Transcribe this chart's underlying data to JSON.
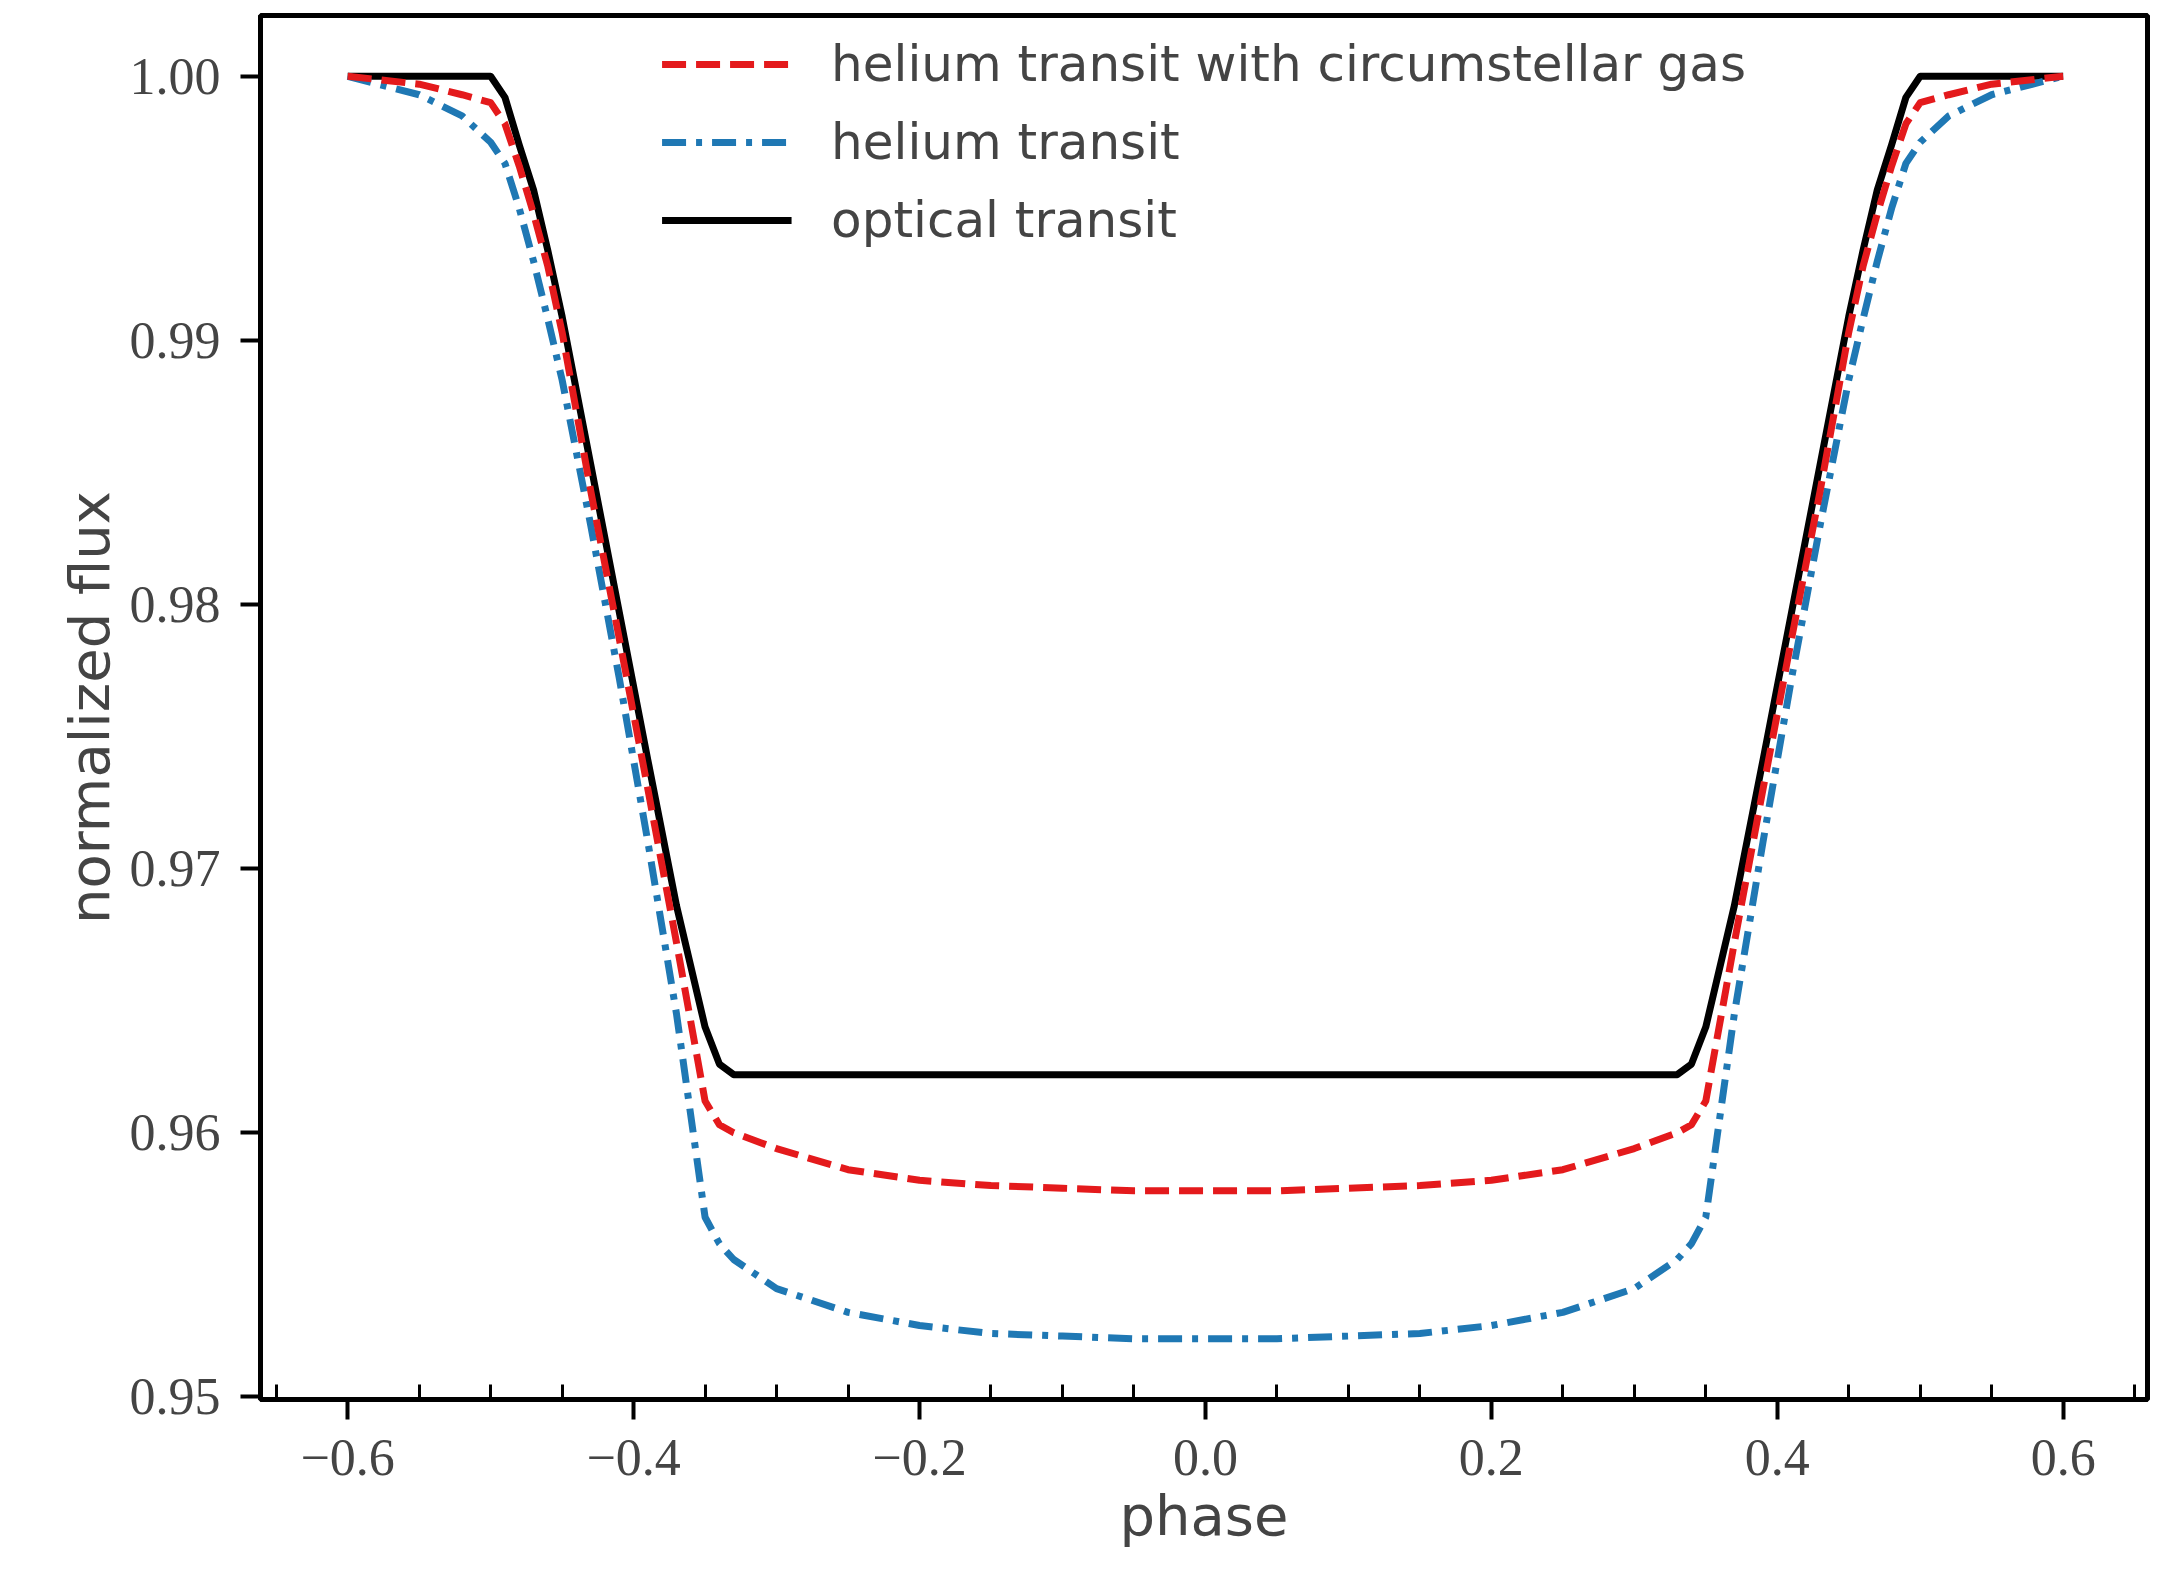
{
  "chart_data": {
    "type": "line",
    "xlabel": "phase",
    "ylabel": "normalized flux",
    "x": [
      -0.6,
      -0.55,
      -0.52,
      -0.5,
      -0.49,
      -0.48,
      -0.47,
      -0.46,
      -0.45,
      -0.43,
      -0.41,
      -0.39,
      -0.37,
      -0.35,
      -0.34,
      -0.33,
      -0.3,
      -0.25,
      -0.2,
      -0.15,
      -0.1,
      -0.05,
      0,
      0.05,
      0.1,
      0.15,
      0.2,
      0.25,
      0.3,
      0.33,
      0.34,
      0.35,
      0.37,
      0.39,
      0.41,
      0.43,
      0.45,
      0.46,
      0.47,
      0.48,
      0.49,
      0.5,
      0.52,
      0.55,
      0.6
    ],
    "series": [
      {
        "name": "helium transit with circumstellar gas",
        "color": "#e41a1c",
        "line_style": "dashed",
        "values": [
          1,
          0.9997,
          0.9993,
          0.999,
          0.9982,
          0.9966,
          0.9948,
          0.9928,
          0.9903,
          0.9843,
          0.9787,
          0.973,
          0.9672,
          0.9612,
          0.9603,
          0.96,
          0.9594,
          0.9586,
          0.9582,
          0.958,
          0.9579,
          0.9578,
          0.9578,
          0.9578,
          0.9579,
          0.958,
          0.9582,
          0.9586,
          0.9594,
          0.96,
          0.9603,
          0.9612,
          0.9672,
          0.973,
          0.9787,
          0.9843,
          0.9903,
          0.9928,
          0.9948,
          0.9966,
          0.9982,
          0.999,
          0.9993,
          0.9997,
          1
        ]
      },
      {
        "name": "helium transit",
        "color": "#1f78b4",
        "line_style": "dashdot",
        "values": [
          1,
          0.9993,
          0.9985,
          0.9975,
          0.9967,
          0.995,
          0.993,
          0.9908,
          0.9885,
          0.983,
          0.9772,
          0.971,
          0.9645,
          0.9568,
          0.9558,
          0.9552,
          0.9541,
          0.9532,
          0.9527,
          0.9524,
          0.9523,
          0.9522,
          0.9522,
          0.9522,
          0.9523,
          0.9524,
          0.9527,
          0.9532,
          0.9541,
          0.9552,
          0.9558,
          0.9568,
          0.9645,
          0.971,
          0.9772,
          0.983,
          0.9885,
          0.9908,
          0.993,
          0.995,
          0.9967,
          0.9975,
          0.9985,
          0.9993,
          1
        ]
      },
      {
        "name": "optical transit",
        "color": "#000000",
        "line_style": "solid",
        "values": [
          1,
          1,
          1,
          1,
          0.9992,
          0.9974,
          0.9957,
          0.9934,
          0.9909,
          0.9853,
          0.9797,
          0.9741,
          0.9686,
          0.964,
          0.9626,
          0.9622,
          0.9622,
          0.9622,
          0.9622,
          0.9622,
          0.9622,
          0.9622,
          0.9622,
          0.9622,
          0.9622,
          0.9622,
          0.9622,
          0.9622,
          0.9622,
          0.9622,
          0.9626,
          0.964,
          0.9686,
          0.9741,
          0.9797,
          0.9853,
          0.9909,
          0.9934,
          0.9957,
          0.9974,
          0.9992,
          1,
          1,
          1,
          1
        ]
      }
    ],
    "xlim": [
      -0.661,
      0.659
    ],
    "ylim": [
      0.9499,
      1.0023
    ],
    "xticks": [
      {
        "value": -0.6,
        "label": "−0.6"
      },
      {
        "value": -0.4,
        "label": "−0.4"
      },
      {
        "value": -0.2,
        "label": "−0.2"
      },
      {
        "value": 0,
        "label": "0.0"
      },
      0.2,
      0.4,
      0.6
    ],
    "yticks": [
      0.95,
      0.96,
      0.97,
      0.98,
      0.99,
      {
        "value": 1,
        "label": "1.00"
      }
    ],
    "grid": false,
    "legend": "top",
    "marker": "none"
  }
}
